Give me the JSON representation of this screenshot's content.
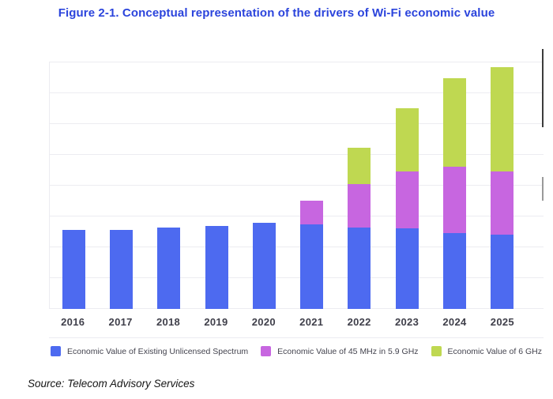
{
  "figure": {
    "title": "Figure 2-1. Conceptual representation of the drivers of Wi-Fi economic value",
    "source": "Source: Telecom Advisory Services"
  },
  "colors": {
    "title_text": "#2B44DC",
    "grid": "#ECECF1",
    "axis_label_text": "#3F3F4A",
    "legend_text": "#44444F",
    "scrollbar_thumb": "#3C3C3C",
    "scrollbar_mark": "#9A9A9A"
  },
  "chart_data": {
    "type": "bar",
    "stacked": true,
    "title": "Figure 2-1. Conceptual representation of the drivers of Wi-Fi economic value",
    "categories": [
      "2016",
      "2017",
      "2018",
      "2019",
      "2020",
      "2021",
      "2022",
      "2023",
      "2024",
      "2025"
    ],
    "series": [
      {
        "name": "Economic Value of Existing Unlicensed Spectrum",
        "color": "#4D6AF0",
        "values": [
          100,
          100,
          103,
          105,
          109,
          107,
          103,
          102,
          96,
          94
        ]
      },
      {
        "name": "Economic Value of 45 MHz in 5.9 GHz",
        "color": "#C766E0",
        "values": [
          0,
          0,
          0,
          0,
          0,
          30,
          55,
          72,
          84,
          80
        ]
      },
      {
        "name": "Economic Value of 6 GHz",
        "color": "#BFD851",
        "values": [
          0,
          0,
          0,
          0,
          0,
          0,
          46,
          80,
          112,
          132
        ]
      }
    ],
    "xlabel": "",
    "ylabel": "",
    "ylim": [
      0,
      312
    ],
    "y_tick_labels_visible": false,
    "grid": "horizontal",
    "gridline_interval": 39,
    "legend_position": "bottom",
    "note": "Conceptual illustration; no numeric y-axis shown. Values are relative units estimated from bar heights (2016 existing-spectrum bar = 100)."
  }
}
